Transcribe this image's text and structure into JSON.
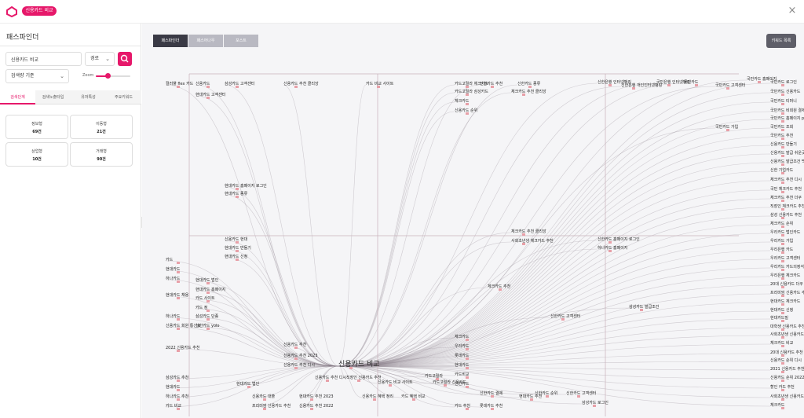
{
  "header": {
    "brand": "신용카드 비교",
    "close_icon": "×"
  },
  "sidebar": {
    "title": "패스파인더",
    "search": {
      "value": "신용카드 비교",
      "placeholder": ""
    },
    "route_select": "경로",
    "sort_select": "검색량 기준",
    "zoom_label": "Zoom",
    "zoom_level": 0.35,
    "tabs": [
      "검색단계",
      "검색노출타입",
      "유저특성",
      "주요키워드"
    ],
    "stats": [
      {
        "label": "정보형",
        "value": "69건"
      },
      {
        "label": "이동형",
        "value": "21건"
      },
      {
        "label": "상업형",
        "value": "10건"
      },
      {
        "label": "거래형",
        "value": "90건"
      }
    ]
  },
  "main": {
    "view_tabs": [
      "패스파인더",
      "패스어나우",
      "포스트"
    ],
    "keyword_list_button": "키워드 목록",
    "center_keyword": "신용카드 비교"
  },
  "colors": {
    "accent": "#e6186a",
    "node": "#e8a0a8",
    "link": "#8a7f8a"
  },
  "graph": {
    "nodes": [
      {
        "label": "컬러풀 flex 카드"
      },
      {
        "label": "신용카드"
      },
      {
        "label": "삼성카드 고객센터"
      },
      {
        "label": "현대카드 고객센터"
      },
      {
        "label": "신용카드 추천 클리앙"
      },
      {
        "label": "카드 비교 사이트"
      },
      {
        "label": "카드고릴라 체크카드"
      },
      {
        "label": "신한카드 추천"
      },
      {
        "label": "신한카드 종류"
      },
      {
        "label": "카드고릴라 삼성카드"
      },
      {
        "label": "체크카드 추천 클리앙"
      },
      {
        "label": "체크카드"
      },
      {
        "label": "신용카드 순위"
      },
      {
        "label": "신한은행 인터넷뱅킹"
      },
      {
        "label": "신한은행 개인인터넷뱅킹"
      },
      {
        "label": "국민은행 인터넷뱅킹"
      },
      {
        "label": "국민카드"
      },
      {
        "label": "국민카드 고객센터"
      },
      {
        "label": "국민카드 홈페이지"
      },
      {
        "label": "국민카드 로그인"
      },
      {
        "label": "국민카드 신용카드"
      },
      {
        "label": "국민카드 티머니"
      },
      {
        "label": "국민카드 비회원 결제"
      },
      {
        "label": "국민카드 홈페이지 pc"
      },
      {
        "label": "국민카드 가입"
      },
      {
        "label": "국민카드 조회"
      },
      {
        "label": "국민카드 추천"
      },
      {
        "label": "신용카드 만들기"
      },
      {
        "label": "신용카드 발급 쉬운곳"
      },
      {
        "label": "신용카드 발급조건 백수"
      },
      {
        "label": "신한 기업카드"
      },
      {
        "label": "체크카드 추천 디시"
      },
      {
        "label": "국민 체크카드 추천"
      },
      {
        "label": "체크카드 추천 더쿠"
      },
      {
        "label": "직장인 체크카드 추천"
      },
      {
        "label": "삼성 신용카드 추천"
      },
      {
        "label": "체크카드 순위"
      },
      {
        "label": "우리카드 법인카드"
      },
      {
        "label": "우리카드 가입"
      },
      {
        "label": "우리은행 카드"
      },
      {
        "label": "우리카드 고객센터"
      },
      {
        "label": "우리카드 카드의정석 포인트"
      },
      {
        "label": "우리은행 체크카드"
      },
      {
        "label": "20대 신용카드 더쿠"
      },
      {
        "label": "프리미엄 신용카드 추천"
      },
      {
        "label": "현대카드 체크카드"
      },
      {
        "label": "현대카드 신청"
      },
      {
        "label": "현대카드빌"
      },
      {
        "label": "대학생 신용카드 추천"
      },
      {
        "label": "사회초년생 신용카드 추천"
      },
      {
        "label": "체크카드 비교"
      },
      {
        "label": "20대 신용카드 추천"
      },
      {
        "label": "신용카드 순위 디시"
      },
      {
        "label": "2021 신용카드 추천"
      },
      {
        "label": "신용카드 순위 2022"
      },
      {
        "label": "할인 카드 추천"
      },
      {
        "label": "사회초년생 신용카드 추천 더쿠"
      },
      {
        "label": "체크카드"
      },
      {
        "label": "현대카드 홈페이지 로그인"
      },
      {
        "label": "현대카드 종류"
      },
      {
        "label": "신용카드 현대"
      },
      {
        "label": "현대카드 만들기"
      },
      {
        "label": "현대카드 신청"
      },
      {
        "label": "체크카드 추천 클리앙"
      },
      {
        "label": "사회초년생 체크카드 추천"
      },
      {
        "label": "신한카드 홈페이지 로그인"
      },
      {
        "label": "하나카드 홈페이지"
      },
      {
        "label": "체크카드 추천"
      },
      {
        "label": "신한카드 고객센터"
      },
      {
        "label": "삼성카드 발급조건"
      },
      {
        "label": "카드"
      },
      {
        "label": "현대카드"
      },
      {
        "label": "현대카드 법인"
      },
      {
        "label": "하나카드"
      },
      {
        "label": "현대카드 홈페이지"
      },
      {
        "label": "현대카드 채용"
      },
      {
        "label": "카드 사이트"
      },
      {
        "label": "카드 정"
      },
      {
        "label": "삼성카드 단종"
      },
      {
        "label": "신한카드 yolo"
      },
      {
        "label": "하나카드"
      },
      {
        "label": "신용카드 회원 통신료"
      },
      {
        "label": "2022 신용카드 추천"
      },
      {
        "label": "신용카드 추천"
      },
      {
        "label": "신용카드 추천 2023"
      },
      {
        "label": "신용카드 추천 디시"
      },
      {
        "label": "신용카드 비교"
      },
      {
        "label": "카드고릴라"
      },
      {
        "label": "신용카드 대출"
      },
      {
        "label": "체크카드"
      },
      {
        "label": "우리카드"
      },
      {
        "label": "롯데카드"
      },
      {
        "label": "현대카드"
      },
      {
        "label": "카드비교"
      },
      {
        "label": "카드고릴라 신용카드"
      },
      {
        "label": "신한카드"
      },
      {
        "label": "신한카드 결제"
      },
      {
        "label": "신한카드 순위"
      },
      {
        "label": "신한카드 고객센터"
      },
      {
        "label": "삼성카드 로그인"
      },
      {
        "label": "카드 추천"
      },
      {
        "label": "롯데카드 추천"
      },
      {
        "label": "현대카드 추천"
      },
      {
        "label": "현대카드 추천 2023"
      },
      {
        "label": "신용카드 추천 2022"
      },
      {
        "label": "프리미엄 신용카드 추천"
      },
      {
        "label": "신용카드 혜택 정리"
      },
      {
        "label": "카드 혜택 비교"
      },
      {
        "label": "신용카드 비교 사이트"
      },
      {
        "label": "직장인 신용카드 추천"
      },
      {
        "label": "신용카드 추천 디시"
      },
      {
        "label": "현대카드 법인"
      },
      {
        "label": "삼성카드 추천"
      },
      {
        "label": "현대카드"
      },
      {
        "label": "하나카드 추천"
      },
      {
        "label": "카드 비교"
      }
    ]
  }
}
